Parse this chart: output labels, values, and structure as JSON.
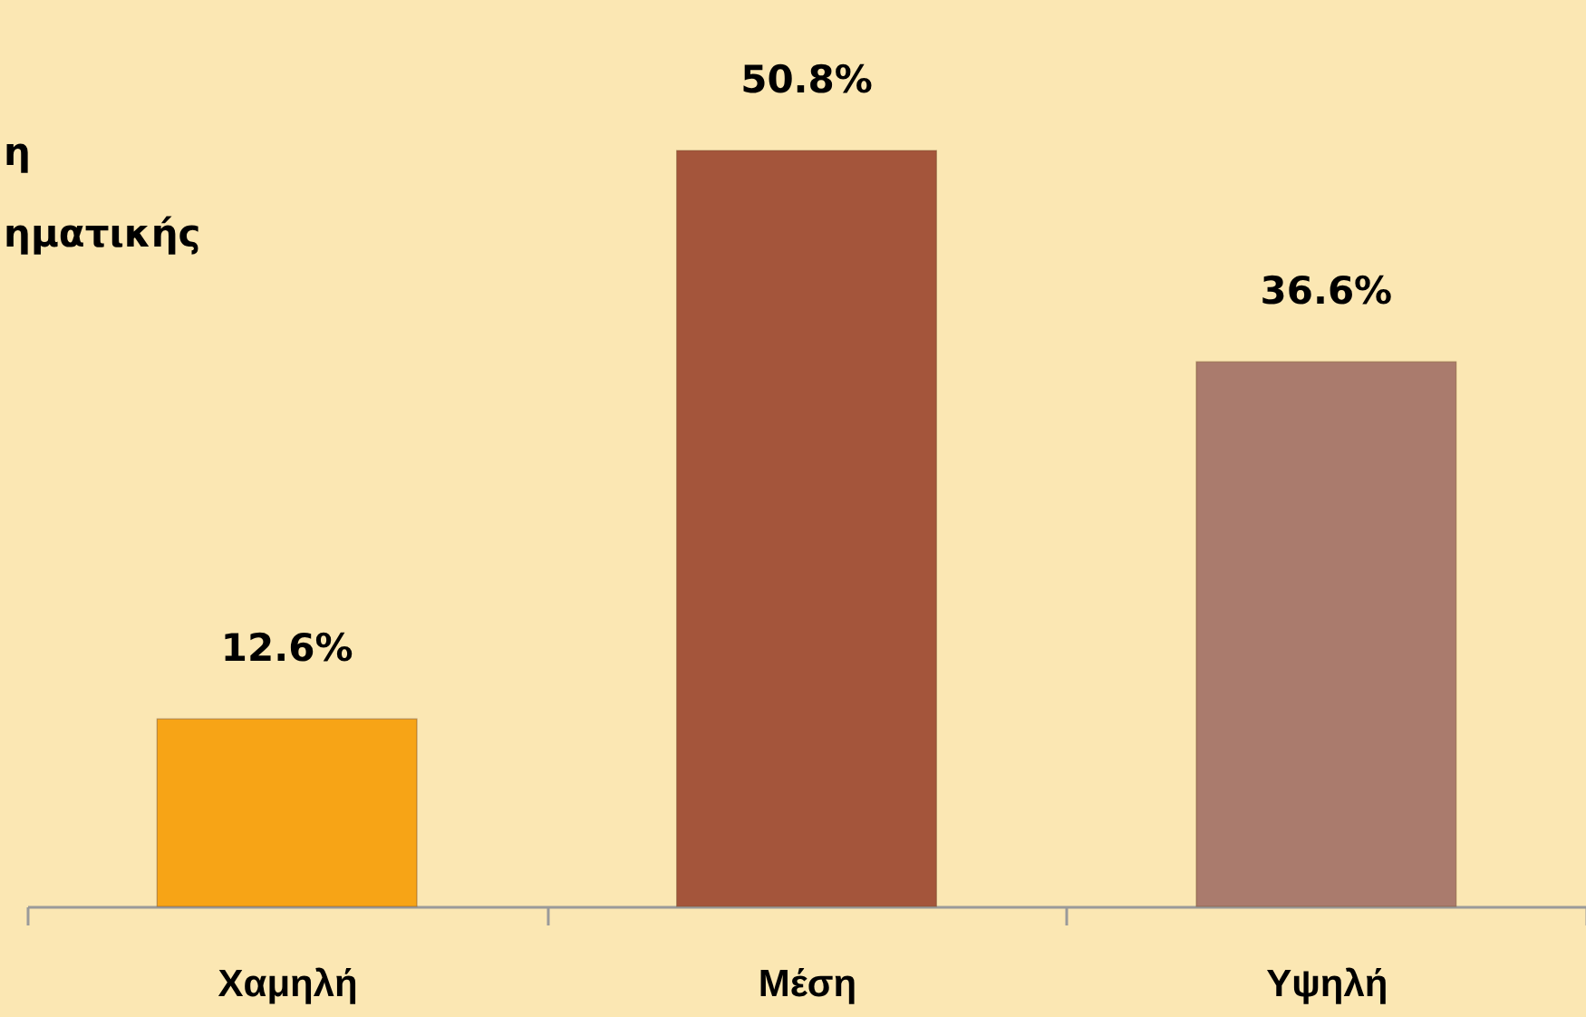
{
  "chart_data": {
    "type": "bar",
    "title": "η\nηματικής",
    "categories": [
      "Χαμηλή",
      "Μέση",
      "Υψηλή"
    ],
    "values": [
      12.6,
      50.8,
      36.6
    ],
    "colors": [
      "#f7a416",
      "#a4553b",
      "#aa7b6d"
    ],
    "value_labels": [
      "12.6%",
      "50.8%",
      "36.6%"
    ]
  }
}
